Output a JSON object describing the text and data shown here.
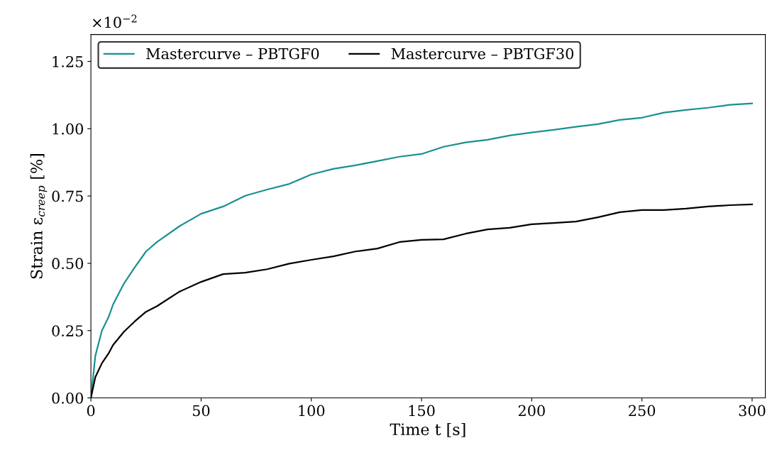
{
  "chart_data": {
    "type": "line",
    "xlabel": "Time t [s]",
    "ylabel": "Strain ε$_{creep}$ [%]",
    "annotations": [
      "×10$^{−2}$"
    ],
    "xlim": [
      0,
      306
    ],
    "ylim": [
      0,
      1.35
    ],
    "xticks": [
      0,
      50,
      100,
      150,
      200,
      250,
      300
    ],
    "yticks": [
      {
        "value": 0,
        "label": "0.00"
      },
      {
        "value": 0.25,
        "label": "0.25"
      },
      {
        "value": 0.5,
        "label": "0.50"
      },
      {
        "value": 0.75,
        "label": "0.75"
      },
      {
        "value": 1.0,
        "label": "1.00"
      },
      {
        "value": 1.25,
        "label": "1.25"
      }
    ],
    "grid": false,
    "legend": "top left",
    "marker": "none",
    "line_style": "solid",
    "x": [
      0,
      2,
      5,
      8,
      10,
      15,
      20,
      25,
      30,
      40,
      50,
      60,
      70,
      80,
      90,
      100,
      110,
      120,
      130,
      140,
      150,
      160,
      170,
      180,
      190,
      200,
      210,
      220,
      230,
      240,
      250,
      260,
      270,
      280,
      290,
      300
    ],
    "series": [
      {
        "name": "Mastercurve – PBTGF0",
        "color": "#1a9090",
        "values": [
          0,
          0.156,
          0.25,
          0.3,
          0.346,
          0.425,
          0.486,
          0.544,
          0.579,
          0.637,
          0.684,
          0.711,
          0.751,
          0.774,
          0.795,
          0.83,
          0.851,
          0.864,
          0.88,
          0.896,
          0.906,
          0.933,
          0.949,
          0.959,
          0.975,
          0.986,
          0.996,
          1.007,
          1.017,
          1.033,
          1.041,
          1.06,
          1.07,
          1.078,
          1.089,
          1.094
        ]
      },
      {
        "name": "Mastercurve – PBTGF30",
        "color": "#000000",
        "values": [
          0,
          0.077,
          0.129,
          0.165,
          0.196,
          0.246,
          0.285,
          0.32,
          0.341,
          0.394,
          0.431,
          0.46,
          0.465,
          0.478,
          0.499,
          0.513,
          0.526,
          0.544,
          0.555,
          0.579,
          0.587,
          0.589,
          0.61,
          0.626,
          0.632,
          0.645,
          0.65,
          0.655,
          0.671,
          0.69,
          0.698,
          0.698,
          0.703,
          0.711,
          0.716,
          0.719
        ]
      }
    ]
  }
}
